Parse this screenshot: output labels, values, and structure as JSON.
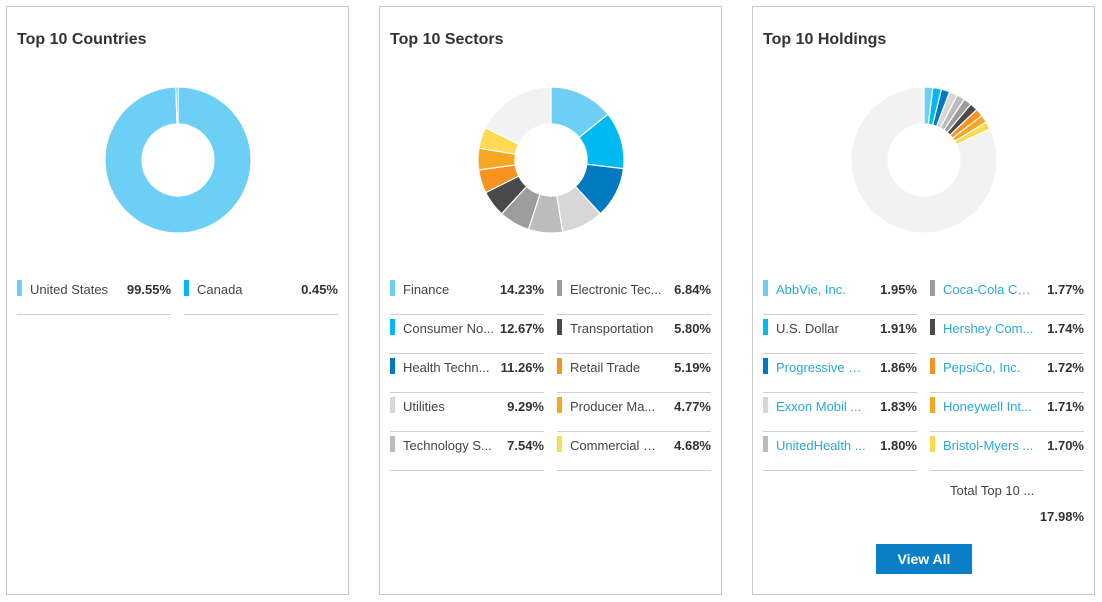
{
  "countries": {
    "title": "Top 10 Countries",
    "legend": [
      {
        "label": "United States",
        "value": "99.55%",
        "color": "#6dcff6"
      },
      {
        "label": "Canada",
        "value": "0.45%",
        "color": "#00b9f1"
      }
    ]
  },
  "sectors": {
    "title": "Top 10 Sectors",
    "legend": [
      {
        "label": "Finance",
        "value": "14.23%",
        "color": "#6dcff6"
      },
      {
        "label": "Consumer No...",
        "value": "12.67%",
        "color": "#00b9f1"
      },
      {
        "label": "Health Techn...",
        "value": "11.26%",
        "color": "#0079c1"
      },
      {
        "label": "Utilities",
        "value": "9.29%",
        "color": "#d7d7d7"
      },
      {
        "label": "Technology S...",
        "value": "7.54%",
        "color": "#bcbcbc"
      },
      {
        "label": "Electronic Tec...",
        "value": "6.84%",
        "color": "#9c9c9c"
      },
      {
        "label": "Transportation",
        "value": "5.80%",
        "color": "#4a4a4a"
      },
      {
        "label": "Retail Trade",
        "value": "5.19%",
        "color": "#f7931e"
      },
      {
        "label": "Producer Ma...",
        "value": "4.77%",
        "color": "#f5a623"
      },
      {
        "label": "Commercial S...",
        "value": "4.68%",
        "color": "#fdd954"
      }
    ]
  },
  "holdings": {
    "title": "Top 10 Holdings",
    "legend": [
      {
        "label": "AbbVie, Inc.",
        "value": "1.95%",
        "color": "#6dcff6",
        "link": true
      },
      {
        "label": "U.S. Dollar",
        "value": "1.91%",
        "color": "#00b9f1",
        "link": false
      },
      {
        "label": "Progressive C...",
        "value": "1.86%",
        "color": "#0079c1",
        "link": true
      },
      {
        "label": "Exxon Mobil ...",
        "value": "1.83%",
        "color": "#d7d7d7",
        "link": true
      },
      {
        "label": "UnitedHealth ...",
        "value": "1.80%",
        "color": "#bcbcbc",
        "link": true
      },
      {
        "label": "Coca-Cola Co...",
        "value": "1.77%",
        "color": "#9c9c9c",
        "link": true
      },
      {
        "label": "Hershey Com...",
        "value": "1.74%",
        "color": "#4a4a4a",
        "link": true
      },
      {
        "label": "PepsiCo, Inc.",
        "value": "1.72%",
        "color": "#f7931e",
        "link": true
      },
      {
        "label": "Honeywell Int...",
        "value": "1.71%",
        "color": "#f5a623",
        "link": true
      },
      {
        "label": "Bristol-Myers ...",
        "value": "1.70%",
        "color": "#fdd954",
        "link": true
      }
    ],
    "total_label": "Total Top 10 ...",
    "total_value": "17.98%",
    "view_all_label": "View All"
  },
  "chart_data": [
    {
      "type": "pie",
      "title": "Top 10 Countries",
      "categories": [
        "United States",
        "Canada"
      ],
      "values": [
        99.55,
        0.45
      ],
      "colors": [
        "#6dcff6",
        "#00b9f1"
      ],
      "remainder_color": "#f2f2f2"
    },
    {
      "type": "pie",
      "title": "Top 10 Sectors",
      "categories": [
        "Finance",
        "Consumer No...",
        "Health Techn...",
        "Utilities",
        "Technology S...",
        "Electronic Tec...",
        "Transportation",
        "Retail Trade",
        "Producer Ma...",
        "Commercial S..."
      ],
      "values": [
        14.23,
        12.67,
        11.26,
        9.29,
        7.54,
        6.84,
        5.8,
        5.19,
        4.77,
        4.68
      ],
      "colors": [
        "#6dcff6",
        "#00b9f1",
        "#0079c1",
        "#d7d7d7",
        "#bcbcbc",
        "#9c9c9c",
        "#4a4a4a",
        "#f7931e",
        "#f5a623",
        "#fdd954"
      ],
      "remainder_color": "#f2f2f2"
    },
    {
      "type": "pie",
      "title": "Top 10 Holdings",
      "categories": [
        "AbbVie, Inc.",
        "U.S. Dollar",
        "Progressive C...",
        "Exxon Mobil ...",
        "UnitedHealth ...",
        "Coca-Cola Co...",
        "Hershey Com...",
        "PepsiCo, Inc.",
        "Honeywell Int...",
        "Bristol-Myers ..."
      ],
      "values": [
        1.95,
        1.91,
        1.86,
        1.83,
        1.8,
        1.77,
        1.74,
        1.72,
        1.71,
        1.7
      ],
      "colors": [
        "#6dcff6",
        "#00b9f1",
        "#0079c1",
        "#d7d7d7",
        "#bcbcbc",
        "#9c9c9c",
        "#4a4a4a",
        "#f7931e",
        "#f5a623",
        "#fdd954"
      ],
      "remainder_color": "#f2f2f2"
    }
  ]
}
